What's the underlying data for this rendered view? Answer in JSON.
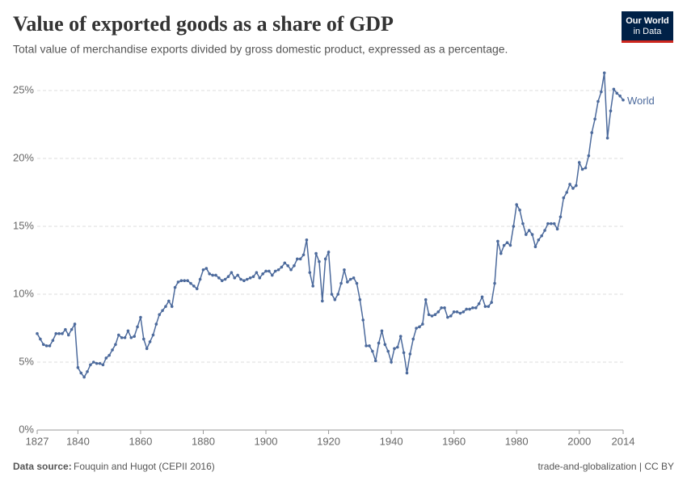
{
  "chart_data": {
    "type": "line",
    "title": "Value of exported goods as a share of GDP",
    "subtitle": "Total value of merchandise exports divided by gross domestic product, expressed as a percentage.",
    "logo": [
      "Our World",
      "in Data"
    ],
    "source_label": "Data source:",
    "source": "Fouquin and Hugot (CEPII 2016)",
    "footer_right": "trade-and-globalization | CC BY",
    "x": [
      1827,
      1828,
      1829,
      1830,
      1831,
      1832,
      1833,
      1834,
      1835,
      1836,
      1837,
      1838,
      1839,
      1840,
      1841,
      1842,
      1843,
      1844,
      1845,
      1846,
      1847,
      1848,
      1849,
      1850,
      1851,
      1852,
      1853,
      1854,
      1855,
      1856,
      1857,
      1858,
      1859,
      1860,
      1861,
      1862,
      1863,
      1864,
      1865,
      1866,
      1867,
      1868,
      1869,
      1870,
      1871,
      1872,
      1873,
      1874,
      1875,
      1876,
      1877,
      1878,
      1879,
      1880,
      1881,
      1882,
      1883,
      1884,
      1885,
      1886,
      1887,
      1888,
      1889,
      1890,
      1891,
      1892,
      1893,
      1894,
      1895,
      1896,
      1897,
      1898,
      1899,
      1900,
      1901,
      1902,
      1903,
      1904,
      1905,
      1906,
      1907,
      1908,
      1909,
      1910,
      1911,
      1912,
      1913,
      1914,
      1915,
      1916,
      1917,
      1918,
      1919,
      1920,
      1921,
      1922,
      1923,
      1924,
      1925,
      1926,
      1927,
      1928,
      1929,
      1930,
      1931,
      1932,
      1933,
      1934,
      1935,
      1936,
      1937,
      1938,
      1939,
      1940,
      1941,
      1942,
      1943,
      1944,
      1945,
      1946,
      1947,
      1948,
      1949,
      1950,
      1951,
      1952,
      1953,
      1954,
      1955,
      1956,
      1957,
      1958,
      1959,
      1960,
      1961,
      1962,
      1963,
      1964,
      1965,
      1966,
      1967,
      1968,
      1969,
      1970,
      1971,
      1972,
      1973,
      1974,
      1975,
      1976,
      1977,
      1978,
      1979,
      1980,
      1981,
      1982,
      1983,
      1984,
      1985,
      1986,
      1987,
      1988,
      1989,
      1990,
      1991,
      1992,
      1993,
      1994,
      1995,
      1996,
      1997,
      1998,
      1999,
      2000,
      2001,
      2002,
      2003,
      2004,
      2005,
      2006,
      2007,
      2008,
      2009,
      2010,
      2011,
      2012,
      2013,
      2014
    ],
    "series": [
      {
        "name": "World",
        "color": "#4c6a9c",
        "values": [
          7.1,
          6.7,
          6.3,
          6.2,
          6.2,
          6.6,
          7.1,
          7.1,
          7.1,
          7.4,
          7.0,
          7.4,
          7.8,
          4.6,
          4.2,
          3.9,
          4.3,
          4.8,
          5.0,
          4.9,
          4.9,
          4.8,
          5.3,
          5.5,
          5.9,
          6.3,
          7.0,
          6.8,
          6.8,
          7.3,
          6.8,
          6.9,
          7.6,
          8.3,
          6.7,
          6.0,
          6.5,
          7.0,
          7.8,
          8.5,
          8.8,
          9.1,
          9.5,
          9.1,
          10.5,
          10.9,
          11.0,
          11.0,
          11.0,
          10.8,
          10.6,
          10.4,
          11.1,
          11.8,
          11.9,
          11.5,
          11.4,
          11.4,
          11.2,
          11.0,
          11.1,
          11.3,
          11.6,
          11.2,
          11.4,
          11.1,
          11.0,
          11.1,
          11.2,
          11.3,
          11.6,
          11.2,
          11.5,
          11.7,
          11.7,
          11.4,
          11.7,
          11.8,
          12.0,
          12.3,
          12.1,
          11.8,
          12.1,
          12.6,
          12.6,
          12.9,
          14.0,
          11.6,
          10.6,
          13.0,
          12.4,
          9.5,
          12.6,
          13.1,
          10.0,
          9.6,
          10.0,
          10.8,
          11.8,
          10.9,
          11.1,
          11.2,
          10.8,
          9.6,
          8.1,
          6.2,
          6.2,
          5.8,
          5.1,
          6.4,
          7.3,
          6.3,
          5.8,
          5.0,
          6.0,
          6.1,
          6.9,
          5.7,
          4.2,
          5.6,
          6.7,
          7.5,
          7.6,
          7.8,
          9.6,
          8.5,
          8.4,
          8.5,
          8.7,
          9.0,
          9.0,
          8.3,
          8.4,
          8.7,
          8.7,
          8.6,
          8.7,
          8.9,
          8.9,
          9.0,
          9.0,
          9.3,
          9.8,
          9.1,
          9.1,
          9.4,
          10.8,
          13.9,
          13.0,
          13.6,
          13.8,
          13.6,
          15.0,
          16.6,
          16.2,
          15.2,
          14.4,
          14.7,
          14.4,
          13.5,
          14.0,
          14.3,
          14.7,
          15.2,
          15.2,
          15.2,
          14.8,
          15.7,
          17.1,
          17.5,
          18.1,
          17.8,
          18.0,
          19.7,
          19.2,
          19.3,
          20.2,
          21.9,
          22.9,
          24.2,
          24.9,
          26.3,
          21.5,
          23.5,
          25.1,
          24.8,
          24.6,
          24.3
        ]
      }
    ],
    "xlim": [
      1827,
      2014
    ],
    "xticks": [
      1827,
      1840,
      1860,
      1880,
      1900,
      1920,
      1940,
      1960,
      1980,
      2000,
      2014
    ],
    "ylim": [
      0,
      25
    ],
    "yticks": [
      {
        "value": 0,
        "label": "0%"
      },
      {
        "value": 5,
        "label": "5%"
      },
      {
        "value": 10,
        "label": "10%"
      },
      {
        "value": 15,
        "label": "15%"
      },
      {
        "value": 20,
        "label": "20%"
      },
      {
        "value": 25,
        "label": "25%"
      }
    ],
    "grid": true
  }
}
